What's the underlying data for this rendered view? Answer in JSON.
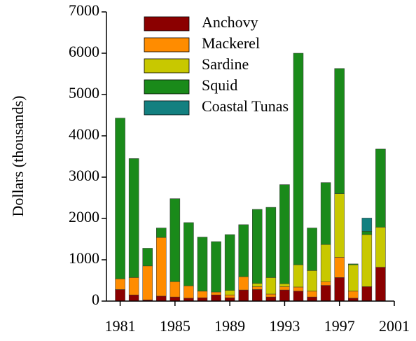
{
  "chart_data": {
    "type": "bar",
    "stacked": true,
    "y_label": "Dollars (thousands)",
    "x": [
      1981,
      1982,
      1983,
      1984,
      1985,
      1986,
      1987,
      1988,
      1989,
      1990,
      1991,
      1992,
      1993,
      1994,
      1995,
      1996,
      1997,
      1998,
      1999,
      2000
    ],
    "series": [
      {
        "name": "Anchovy",
        "color": "#8b0000",
        "values": [
          280,
          150,
          30,
          120,
          100,
          70,
          80,
          150,
          80,
          270,
          280,
          100,
          270,
          240,
          100,
          380,
          570,
          70,
          350,
          820
        ]
      },
      {
        "name": "Mackerel",
        "color": "#ff8c00",
        "values": [
          260,
          420,
          820,
          1420,
          370,
          300,
          160,
          70,
          70,
          320,
          70,
          70,
          80,
          100,
          140,
          90,
          490,
          170,
          0,
          0
        ]
      },
      {
        "name": "Sardine",
        "color": "#c8c800",
        "values": [
          0,
          0,
          0,
          0,
          0,
          0,
          0,
          0,
          110,
          0,
          80,
          400,
          70,
          540,
          500,
          900,
          1540,
          640,
          1260,
          970
        ]
      },
      {
        "name": "Squid",
        "color": "#1a8a1a",
        "values": [
          3890,
          2880,
          430,
          230,
          2010,
          1530,
          1310,
          1220,
          1350,
          1260,
          1790,
          1700,
          2400,
          5120,
          1030,
          1500,
          3030,
          20,
          80,
          1890
        ]
      },
      {
        "name": "Coastal Tunas",
        "color": "#138080",
        "values": [
          0,
          0,
          0,
          0,
          0,
          0,
          0,
          0,
          0,
          0,
          0,
          0,
          0,
          0,
          0,
          0,
          0,
          0,
          320,
          0
        ]
      }
    ],
    "xlim": [
      1980,
      2001
    ],
    "xticks": [
      1981,
      1985,
      1989,
      1993,
      1997,
      2001
    ],
    "ylim": [
      0,
      7000
    ],
    "yticks": [
      0,
      1000,
      2000,
      3000,
      4000,
      5000,
      6000,
      7000
    ]
  }
}
